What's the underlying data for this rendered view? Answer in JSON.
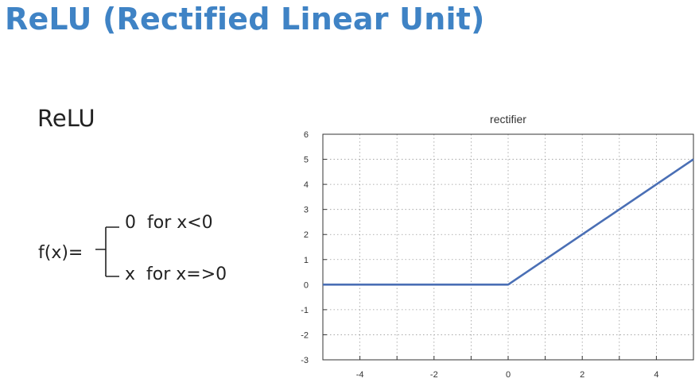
{
  "slide": {
    "title": "ReLU (Rectified Linear Unit)",
    "section_label": "ReLU"
  },
  "formula": {
    "lhs": "f(x)=",
    "case_1": "0  for x<0",
    "case_2": "x  for x=>0"
  },
  "colors": {
    "title": "#3f83c5",
    "line": "#4a6fb5",
    "grid": "#9a9a9a"
  },
  "chart_data": {
    "type": "line",
    "title": "rectifier",
    "xlim": [
      -5,
      5
    ],
    "ylim": [
      -3,
      6
    ],
    "x_ticks": [
      -4,
      -2,
      0,
      2,
      4
    ],
    "y_ticks": [
      -3,
      -2,
      -1,
      0,
      1,
      2,
      3,
      4,
      5,
      6
    ],
    "grid": true,
    "grid_style": "dotted",
    "series": [
      {
        "x": [
          -5,
          0,
          5
        ],
        "y": [
          0,
          0,
          5
        ]
      }
    ]
  }
}
